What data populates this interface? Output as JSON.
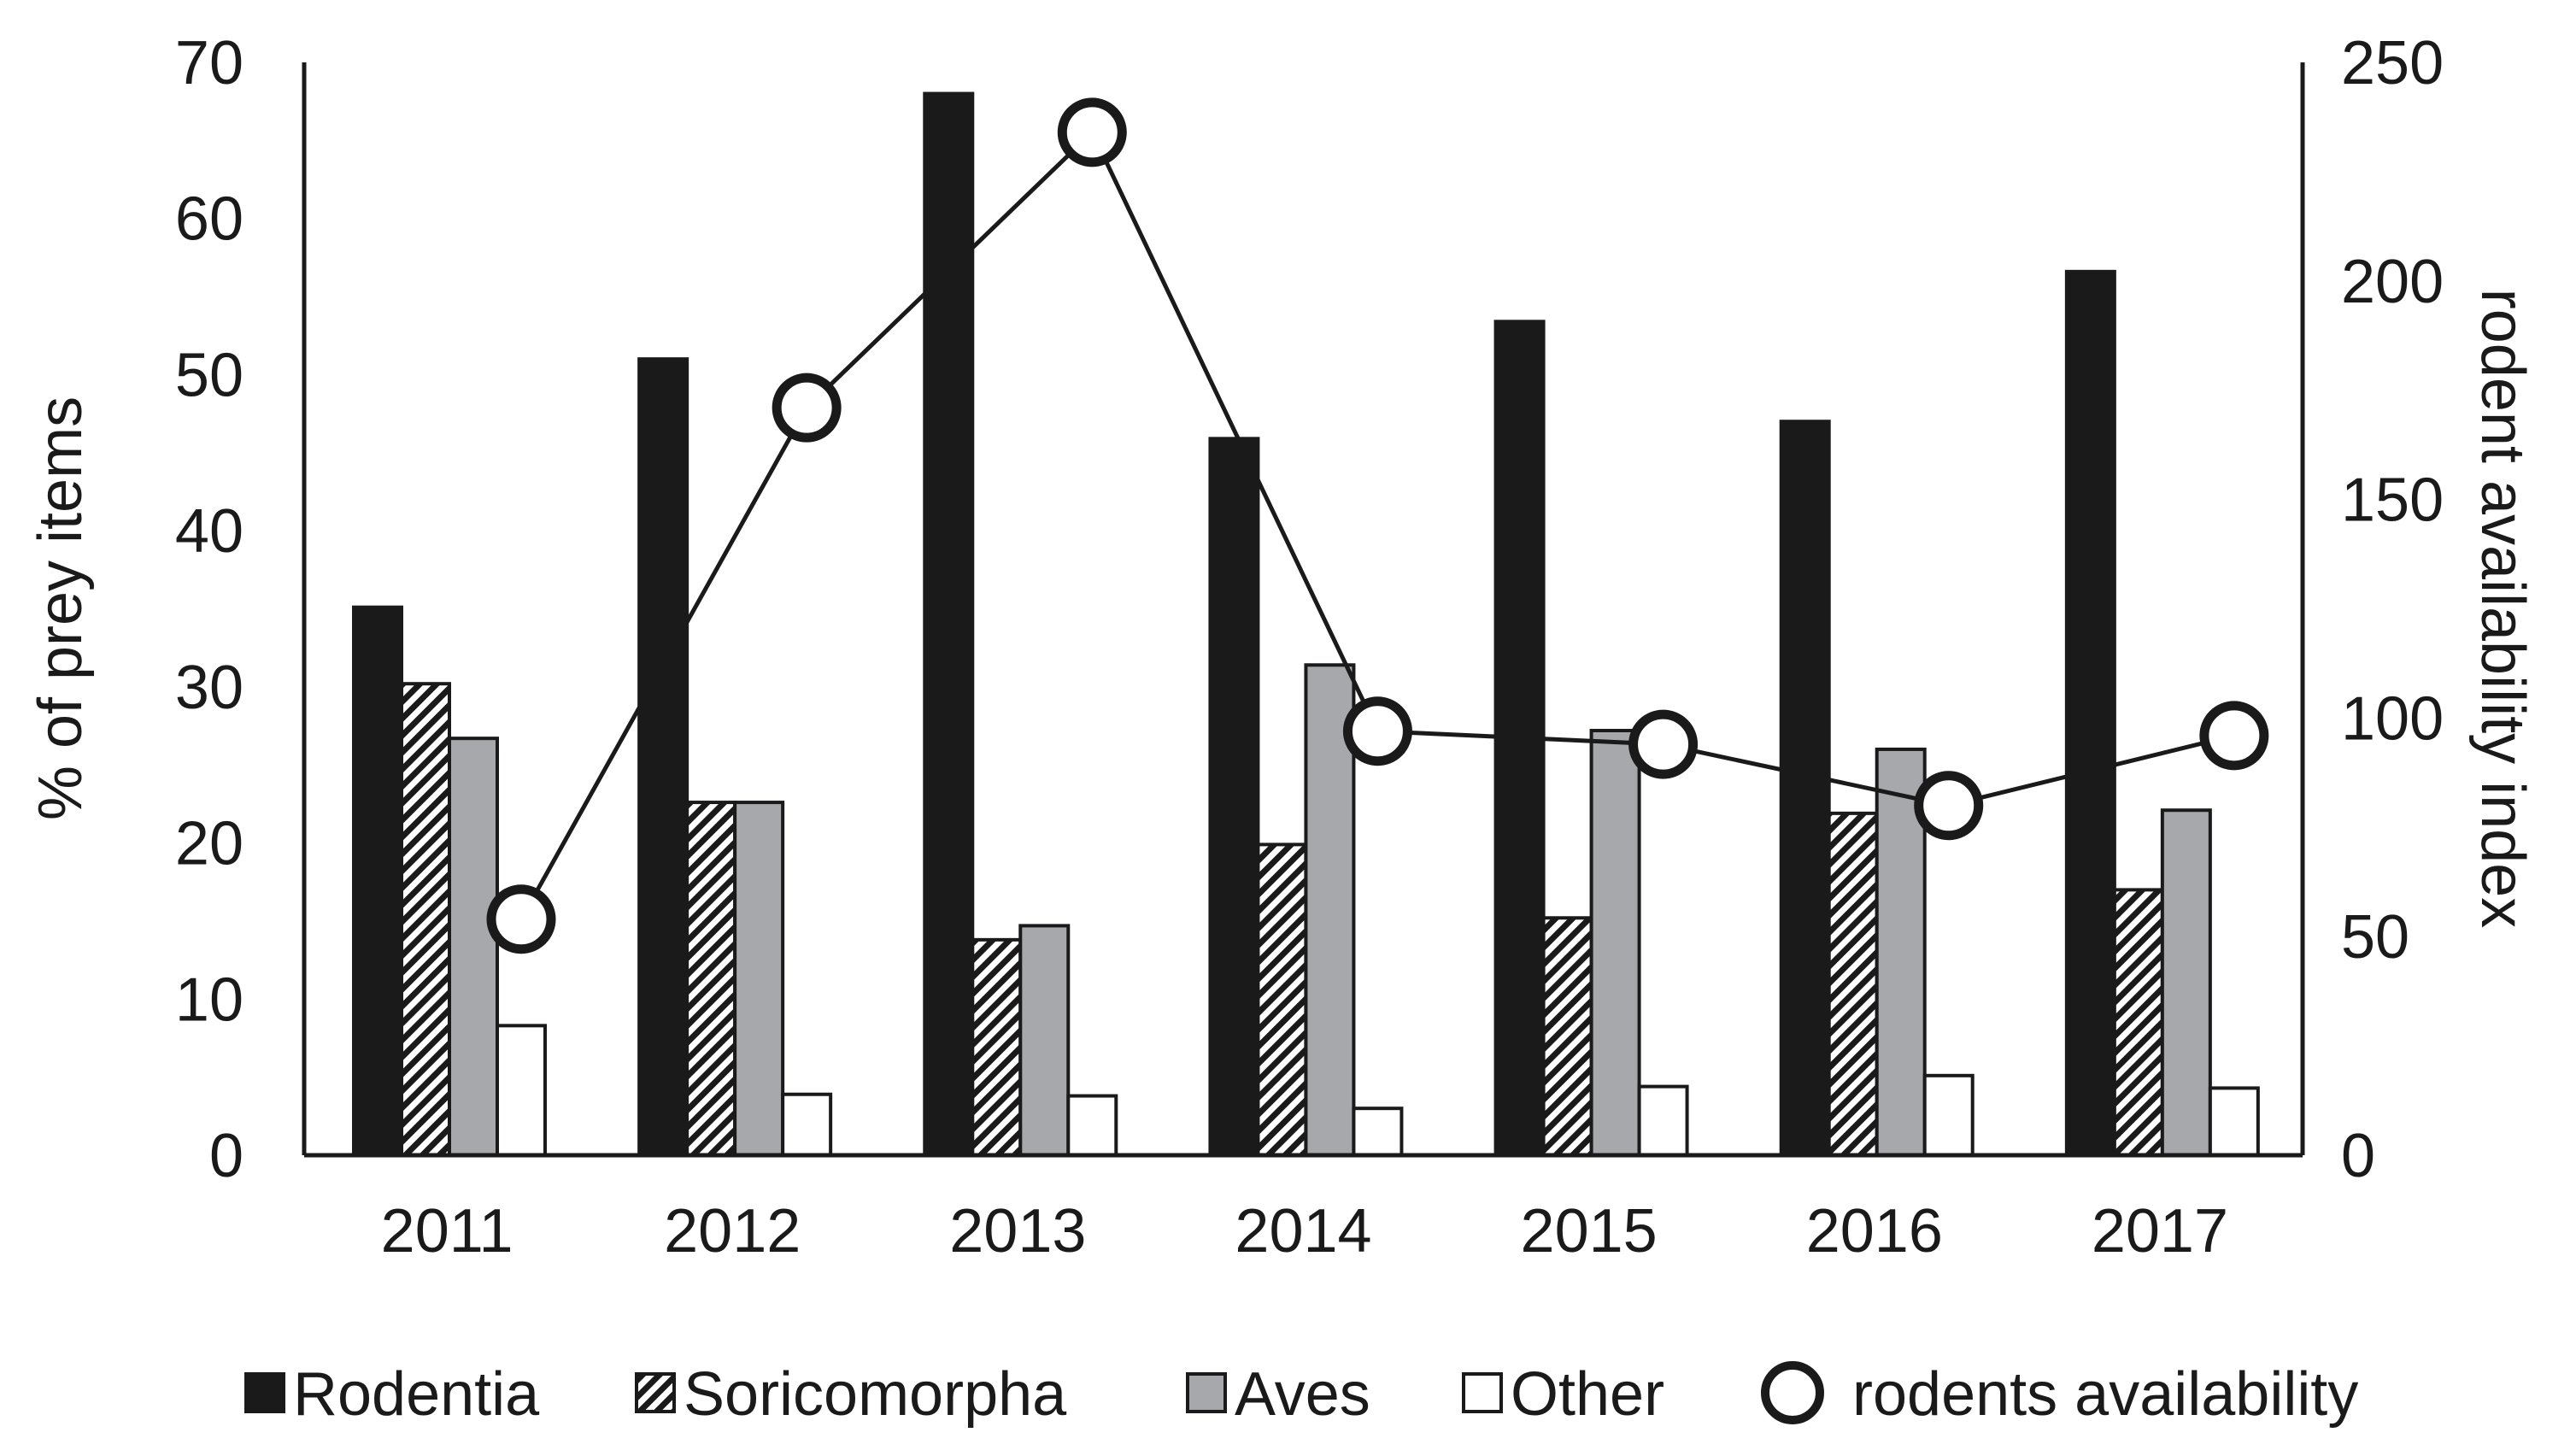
{
  "chart_data": {
    "type": "bar",
    "title": "",
    "categories": [
      "2011",
      "2012",
      "2013",
      "2014",
      "2015",
      "2016",
      "2017"
    ],
    "ylabel": "% of prey items",
    "y2label": "rodent availability index",
    "ylim": [
      0,
      70
    ],
    "y2lim": [
      0,
      250
    ],
    "yticks": [
      "0",
      "10",
      "20",
      "30",
      "40",
      "50",
      "60",
      "70"
    ],
    "y2ticks": [
      "0",
      "50",
      "100",
      "150",
      "200",
      "250"
    ],
    "grid": false,
    "legend_position": "bottom",
    "series": [
      {
        "name": "Rodentia",
        "type": "bar",
        "axis": "left",
        "color": "#1a1a1a",
        "pattern": "solid",
        "values": [
          35.1,
          51.0,
          68.0,
          45.9,
          53.4,
          47.0,
          56.6
        ]
      },
      {
        "name": "Soricomorpha",
        "type": "bar",
        "axis": "left",
        "color": "#1a1a1a",
        "pattern": "hatch",
        "values": [
          30.2,
          22.6,
          13.8,
          19.9,
          15.2,
          21.9,
          17.0
        ]
      },
      {
        "name": "Aves",
        "type": "bar",
        "axis": "left",
        "color": "#a6a8ab",
        "pattern": "solid",
        "values": [
          26.7,
          22.6,
          14.7,
          31.4,
          27.2,
          26.0,
          22.1
        ]
      },
      {
        "name": "Other",
        "type": "bar",
        "axis": "left",
        "color": "#ffffff",
        "pattern": "solid",
        "values": [
          8.3,
          3.9,
          3.8,
          3.0,
          4.4,
          5.1,
          4.3
        ]
      },
      {
        "name": "rodents availability",
        "type": "line",
        "axis": "right",
        "marker": "circle",
        "color": "#1a1a1a",
        "values": [
          54,
          171,
          234,
          97,
          94,
          80,
          96
        ]
      }
    ]
  }
}
